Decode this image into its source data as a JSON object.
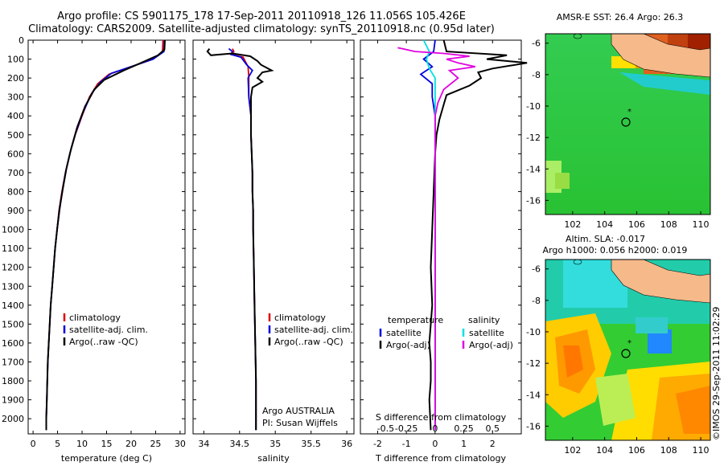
{
  "header": {
    "line1": "Argo profile: CS 5901175_178 17-Sep-2011 20110918_126 11.056S 105.426E",
    "line2": "Climatology: CARS2009. Satellite-adjusted climatology: synTS_20110918.nc (0.95d later)"
  },
  "credit": "©IMOS 29-Sep-2011 11:02:29",
  "colors": {
    "climatology": "#e00000",
    "satellite": "#0000e0",
    "argo": "#000000",
    "sal_sat": "#00e0e0",
    "sal_argo": "#e000e0",
    "land": "#f5b98a"
  },
  "chart_data": [
    {
      "type": "line",
      "id": "temperature",
      "xlabel": "temperature (deg C)",
      "ylim": [
        0,
        2080
      ],
      "xlim": [
        -1,
        31
      ],
      "xticks": [
        "0",
        "5",
        "10",
        "15",
        "20",
        "25",
        "30"
      ],
      "xtick_values": [
        0,
        5,
        10,
        15,
        20,
        25,
        30
      ],
      "yticks": [
        "0",
        "100",
        "200",
        "300",
        "400",
        "500",
        "600",
        "700",
        "800",
        "900",
        "1000",
        "1100",
        "1200",
        "1300",
        "1400",
        "1500",
        "1600",
        "1700",
        "1800",
        "1900",
        "2000"
      ],
      "legend": [
        "climatology",
        "satellite-adj. clim.",
        "Argo(..raw -QC)"
      ],
      "series": [
        {
          "name": "climatology",
          "color": "#e00000",
          "points": [
            [
              26.5,
              0
            ],
            [
              26.4,
              60
            ],
            [
              24.5,
              100
            ],
            [
              20,
              140
            ],
            [
              15.5,
              180
            ],
            [
              13.2,
              230
            ],
            [
              11.5,
              300
            ],
            [
              10,
              400
            ],
            [
              8.6,
              500
            ],
            [
              7.5,
              600
            ],
            [
              6.6,
              700
            ],
            [
              5.9,
              800
            ],
            [
              5.3,
              900
            ],
            [
              4.9,
              1000
            ],
            [
              4.5,
              1100
            ],
            [
              4.2,
              1200
            ],
            [
              3.9,
              1300
            ],
            [
              3.6,
              1400
            ],
            [
              3.4,
              1500
            ],
            [
              3.2,
              1600
            ],
            [
              3.0,
              1700
            ],
            [
              2.9,
              1800
            ],
            [
              2.8,
              1900
            ],
            [
              2.7,
              2000
            ],
            [
              2.7,
              2060
            ]
          ]
        },
        {
          "name": "satellite-adj. clim.",
          "color": "#0000e0",
          "points": [
            [
              26.8,
              0
            ],
            [
              26.7,
              60
            ],
            [
              24.5,
              100
            ],
            [
              20,
              140
            ],
            [
              16,
              175
            ],
            [
              13.8,
              220
            ],
            [
              12,
              280
            ],
            [
              10.2,
              380
            ],
            [
              8.7,
              490
            ],
            [
              7.6,
              590
            ],
            [
              6.7,
              690
            ],
            [
              6,
              790
            ],
            [
              5.4,
              900
            ],
            [
              4.9,
              1000
            ],
            [
              4.5,
              1100
            ],
            [
              4.2,
              1200
            ],
            [
              3.9,
              1300
            ],
            [
              3.6,
              1400
            ],
            [
              3.4,
              1500
            ],
            [
              3.2,
              1600
            ],
            [
              3.0,
              1700
            ],
            [
              2.9,
              1800
            ],
            [
              2.8,
              1900
            ],
            [
              2.7,
              2000
            ],
            [
              2.7,
              2060
            ]
          ]
        },
        {
          "name": "Argo(..raw -QC)",
          "color": "#000000",
          "points": [
            [
              26.9,
              0
            ],
            [
              26.8,
              50
            ],
            [
              25.5,
              80
            ],
            [
              22,
              120
            ],
            [
              18.5,
              160
            ],
            [
              14.5,
              210
            ],
            [
              12.5,
              260
            ],
            [
              10.6,
              350
            ],
            [
              9,
              460
            ],
            [
              7.8,
              570
            ],
            [
              6.8,
              680
            ],
            [
              6.1,
              780
            ],
            [
              5.4,
              890
            ],
            [
              4.9,
              1000
            ],
            [
              4.5,
              1100
            ],
            [
              4.2,
              1200
            ],
            [
              3.9,
              1300
            ],
            [
              3.6,
              1400
            ],
            [
              3.4,
              1500
            ],
            [
              3.2,
              1600
            ],
            [
              3.0,
              1700
            ],
            [
              2.9,
              1800
            ],
            [
              2.8,
              1900
            ],
            [
              2.7,
              2000
            ],
            [
              2.7,
              2060
            ]
          ]
        }
      ]
    },
    {
      "type": "line",
      "id": "salinity",
      "xlabel": "salinity",
      "ylim": [
        0,
        2080
      ],
      "xlim": [
        33.85,
        36.1
      ],
      "xticks": [
        "34",
        "34.5",
        "35",
        "35.5",
        "36"
      ],
      "xtick_values": [
        34,
        34.5,
        35,
        35.5,
        36
      ],
      "legend": [
        "climatology",
        "satellite-adj. clim.",
        "Argo(..raw -QC)"
      ],
      "annotation": [
        "Argo AUSTRALIA",
        "PI: Susan Wijffels"
      ],
      "series": [
        {
          "name": "climatology",
          "color": "#e00000",
          "points": [
            [
              34.4,
              45
            ],
            [
              34.42,
              60
            ],
            [
              34.38,
              75
            ],
            [
              34.55,
              90
            ],
            [
              34.62,
              140
            ],
            [
              34.63,
              200
            ],
            [
              34.63,
              300
            ],
            [
              34.66,
              400
            ],
            [
              34.66,
              500
            ],
            [
              34.67,
              600
            ],
            [
              34.68,
              700
            ],
            [
              34.68,
              800
            ],
            [
              34.69,
              900
            ],
            [
              34.69,
              1000
            ],
            [
              34.7,
              1200
            ],
            [
              34.71,
              1400
            ],
            [
              34.72,
              1600
            ],
            [
              34.73,
              1800
            ],
            [
              34.73,
              2000
            ],
            [
              34.73,
              2060
            ]
          ]
        },
        {
          "name": "satellite-adj. clim.",
          "color": "#0000e0",
          "points": [
            [
              34.35,
              45
            ],
            [
              34.4,
              60
            ],
            [
              34.38,
              75
            ],
            [
              34.52,
              90
            ],
            [
              34.6,
              130
            ],
            [
              34.68,
              160
            ],
            [
              34.62,
              200
            ],
            [
              34.63,
              300
            ],
            [
              34.66,
              400
            ],
            [
              34.66,
              500
            ],
            [
              34.67,
              600
            ],
            [
              34.68,
              700
            ],
            [
              34.68,
              800
            ],
            [
              34.69,
              900
            ],
            [
              34.69,
              1000
            ],
            [
              34.7,
              1200
            ],
            [
              34.71,
              1400
            ],
            [
              34.72,
              1600
            ],
            [
              34.73,
              1800
            ],
            [
              34.73,
              2000
            ],
            [
              34.73,
              2060
            ]
          ]
        },
        {
          "name": "Argo(..raw -QC)",
          "color": "#000000",
          "points": [
            [
              34.08,
              45
            ],
            [
              34.05,
              60
            ],
            [
              34.1,
              80
            ],
            [
              34.4,
              70
            ],
            [
              34.65,
              85
            ],
            [
              34.75,
              110
            ],
            [
              34.8,
              130
            ],
            [
              34.95,
              160
            ],
            [
              34.82,
              170
            ],
            [
              34.75,
              200
            ],
            [
              34.82,
              220
            ],
            [
              34.68,
              250
            ],
            [
              34.66,
              300
            ],
            [
              34.66,
              400
            ],
            [
              34.66,
              500
            ],
            [
              34.67,
              600
            ],
            [
              34.68,
              700
            ],
            [
              34.68,
              800
            ],
            [
              34.69,
              900
            ],
            [
              34.69,
              1000
            ],
            [
              34.7,
              1200
            ],
            [
              34.71,
              1400
            ],
            [
              34.72,
              1600
            ],
            [
              34.73,
              1800
            ],
            [
              34.73,
              2000
            ],
            [
              34.73,
              2060
            ]
          ]
        }
      ]
    },
    {
      "type": "line",
      "id": "difference",
      "xlabel": "T difference from climatology",
      "xlabel_top": "S difference from climatology",
      "ylim": [
        0,
        2080
      ],
      "xlim": [
        -2.6,
        3
      ],
      "xticks": [
        "-2",
        "-1",
        "0",
        "1",
        "2"
      ],
      "xtick_values": [
        -2,
        -1,
        0,
        1,
        2
      ],
      "sticks": [
        "-0.5",
        "-0.25",
        "0",
        "0.25",
        "0.5"
      ],
      "stick_values": [
        -2,
        -1,
        0,
        1,
        2
      ],
      "legend_left_title": "temperature",
      "legend_right_title": "salinity",
      "legend": [
        "satellite",
        "Argo(-adj)",
        "satellite",
        "Argo(-adj)"
      ],
      "series": [
        {
          "name": "T satellite",
          "color": "#0000e0",
          "points": [
            [
              0,
              0
            ],
            [
              -0.05,
              60
            ],
            [
              -0.4,
              100
            ],
            [
              -0.1,
              140
            ],
            [
              -0.5,
              180
            ],
            [
              -0.1,
              230
            ],
            [
              -0.1,
              300
            ],
            [
              0,
              400
            ],
            [
              0,
              600
            ],
            [
              0,
              2060
            ]
          ]
        },
        {
          "name": "T Argo(-adj)",
          "color": "#000000",
          "points": [
            [
              0.3,
              0
            ],
            [
              0.4,
              60
            ],
            [
              2.5,
              80
            ],
            [
              1.8,
              100
            ],
            [
              3.2,
              120
            ],
            [
              2,
              150
            ],
            [
              1.5,
              170
            ],
            [
              1.6,
              200
            ],
            [
              1.2,
              240
            ],
            [
              0.4,
              290
            ],
            [
              0.3,
              340
            ],
            [
              0.15,
              420
            ],
            [
              0.05,
              500
            ],
            [
              0,
              600
            ],
            [
              -0.05,
              800
            ],
            [
              -0.1,
              1000
            ],
            [
              -0.15,
              1200
            ],
            [
              -0.1,
              1400
            ],
            [
              -0.2,
              1600
            ],
            [
              -0.15,
              1700
            ],
            [
              -0.15,
              1800
            ],
            [
              -0.2,
              1900
            ],
            [
              -0.15,
              2060
            ]
          ]
        },
        {
          "name": "S satellite",
          "color": "#00e0e0",
          "points": [
            [
              -0.4,
              0
            ],
            [
              -0.2,
              60
            ],
            [
              -0.3,
              100
            ],
            [
              -0.2,
              150
            ],
            [
              0,
              200
            ],
            [
              0,
              400
            ],
            [
              0,
              800
            ],
            [
              0,
              1200
            ],
            [
              0,
              1600
            ],
            [
              0,
              2060
            ]
          ]
        },
        {
          "name": "S Argo(-adj)",
          "color": "#e000e0",
          "points": [
            [
              -1.3,
              40
            ],
            [
              -0.7,
              60
            ],
            [
              0.3,
              70
            ],
            [
              1.2,
              85
            ],
            [
              0.4,
              100
            ],
            [
              0.8,
              120
            ],
            [
              1.4,
              140
            ],
            [
              0.5,
              160
            ],
            [
              0.8,
              200
            ],
            [
              0.3,
              260
            ],
            [
              0.1,
              330
            ],
            [
              0,
              400
            ],
            [
              0,
              2060
            ]
          ]
        }
      ]
    },
    {
      "type": "heatmap",
      "id": "sst-map",
      "title": "AMSR-E SST: 26.4 Argo: 26.3",
      "xticks": [
        "102",
        "104",
        "106",
        "108",
        "110"
      ],
      "yticks": [
        "-6",
        "-8",
        "-10",
        "-12",
        "-14",
        "-16"
      ],
      "xlim": [
        100.3,
        110.6
      ],
      "ylim": [
        -16.9,
        -5.4
      ],
      "argo_position": [
        105.43,
        -11.06
      ]
    },
    {
      "type": "heatmap",
      "id": "sla-map",
      "title": "Altim. SLA: -0.017",
      "subtitle": "Argo h1000: 0.056 h2000: 0.019",
      "xticks": [
        "102",
        "104",
        "106",
        "108",
        "110"
      ],
      "yticks": [
        "-6",
        "-8",
        "-10",
        "-12",
        "-14",
        "-16"
      ],
      "xlim": [
        100.3,
        110.6
      ],
      "ylim": [
        -16.9,
        -5.4
      ],
      "argo_position": [
        105.43,
        -11.06
      ]
    }
  ]
}
